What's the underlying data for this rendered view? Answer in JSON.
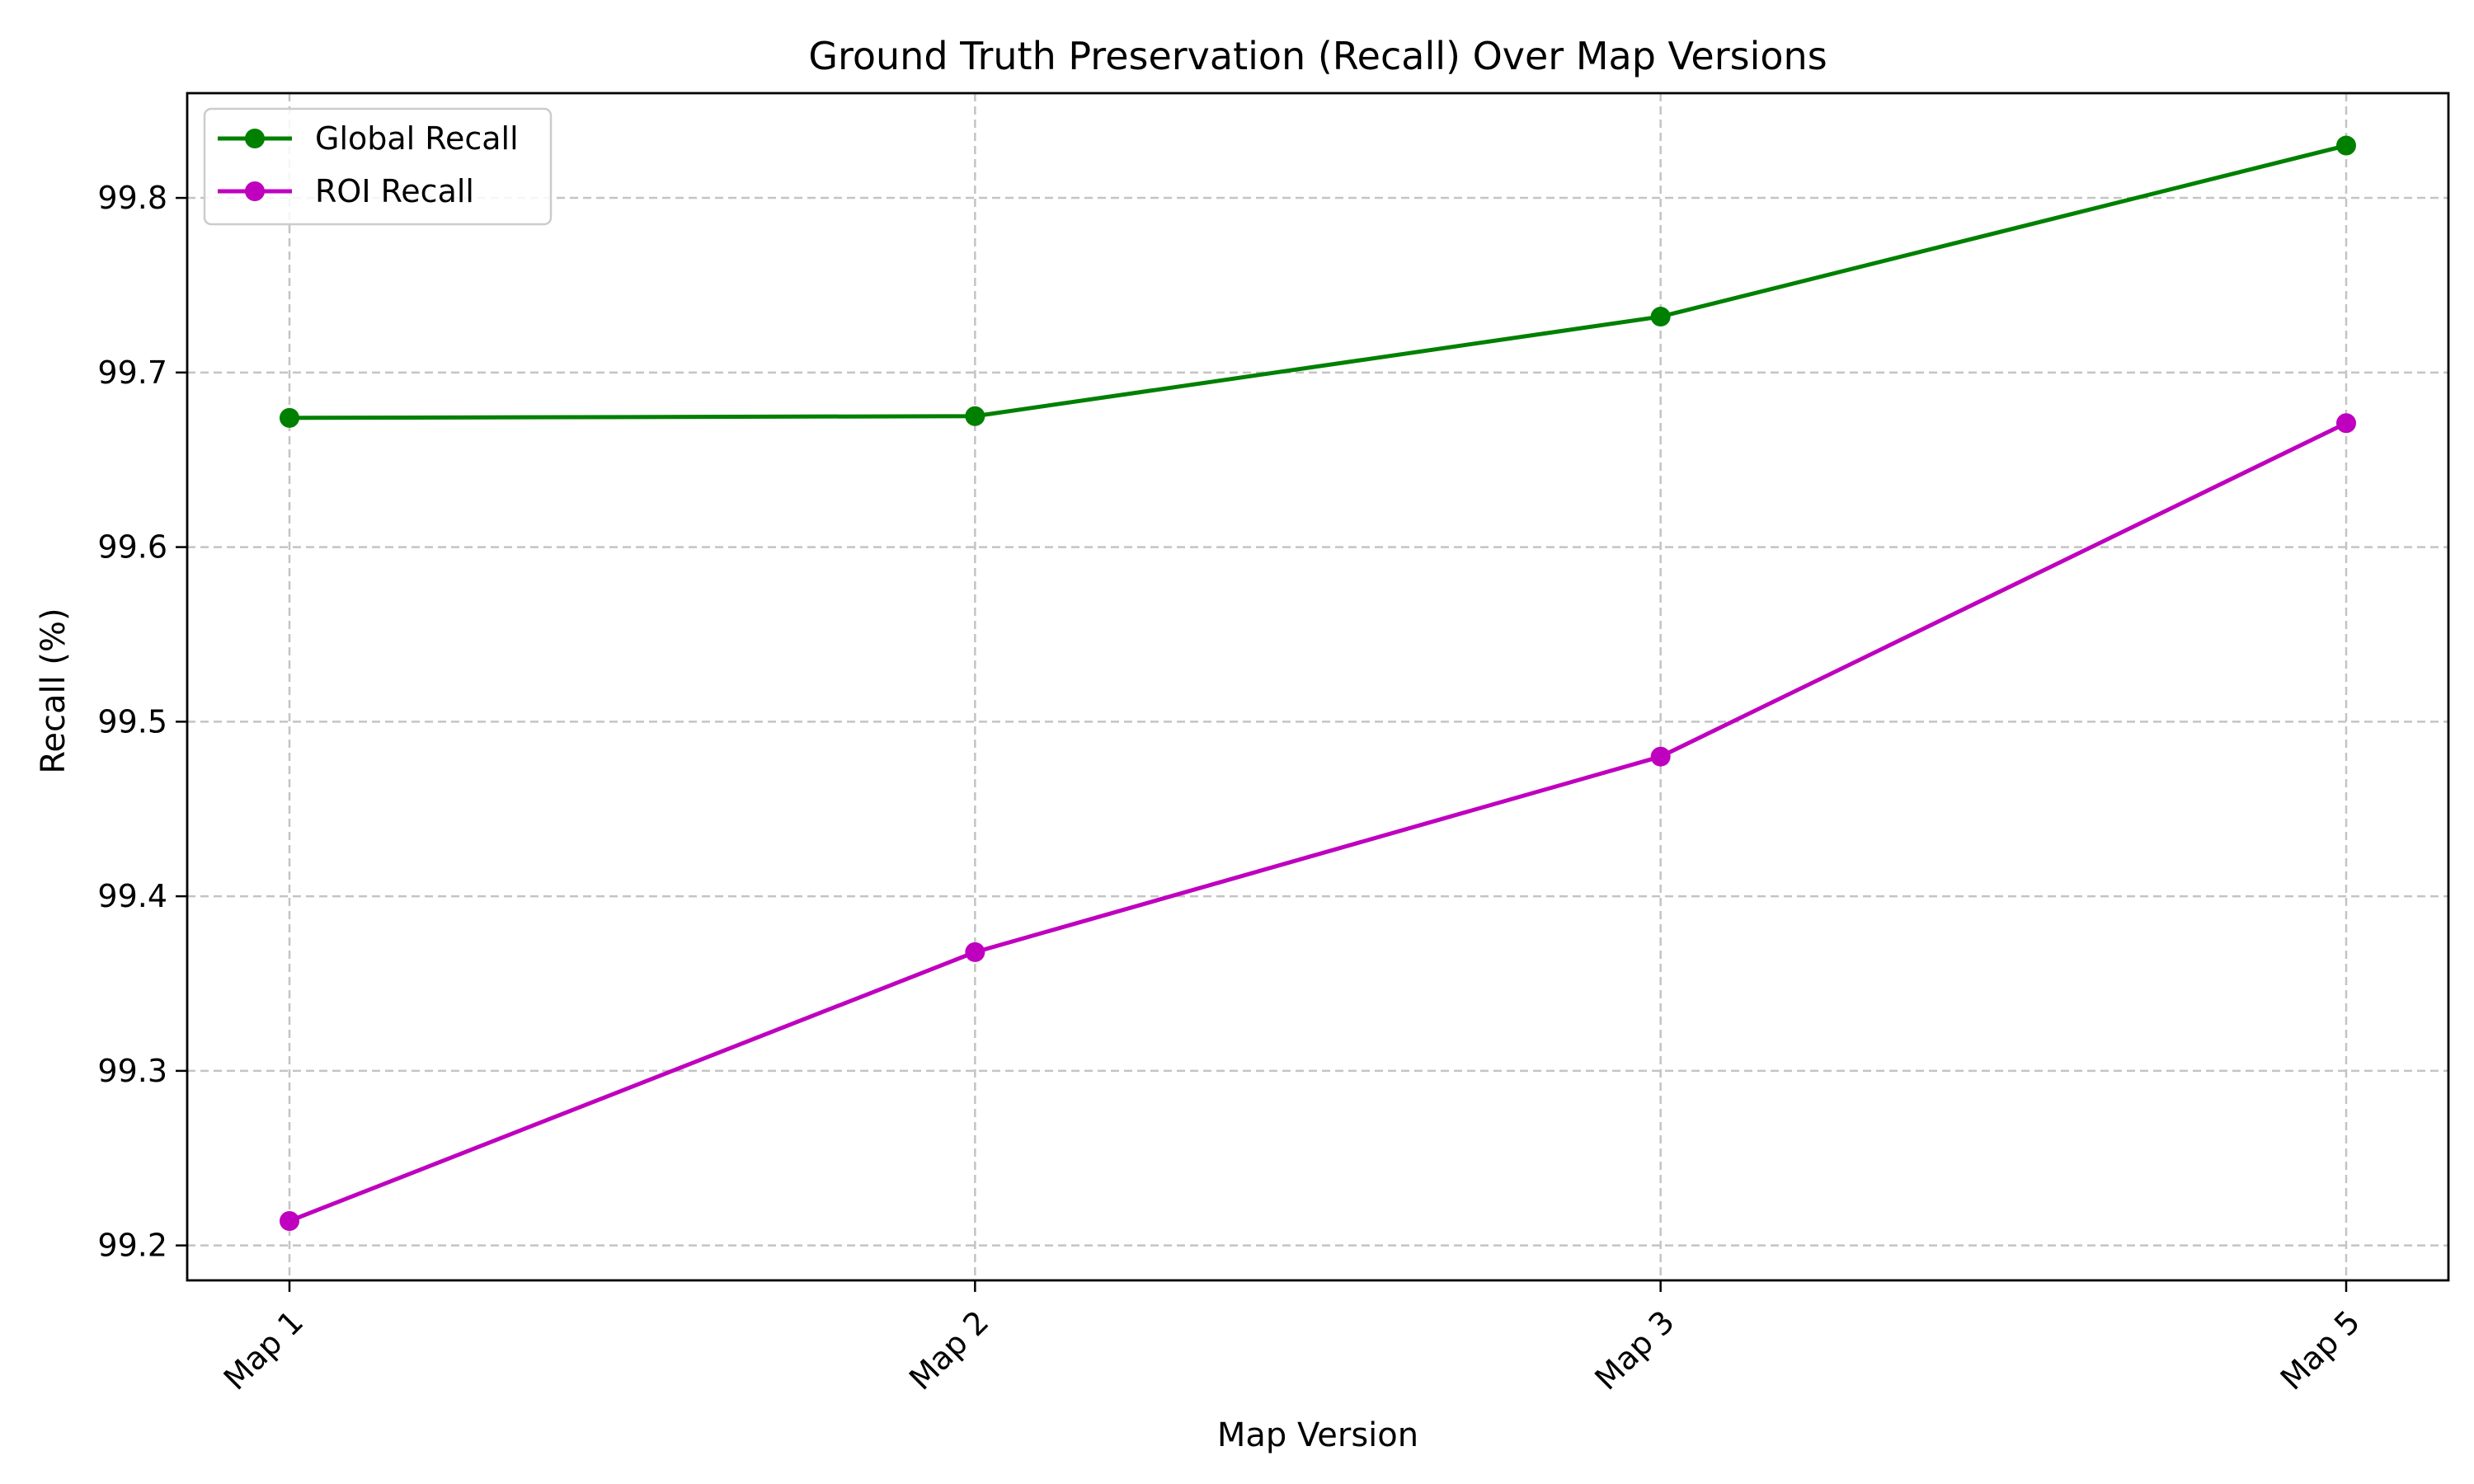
{
  "chart_data": {
    "type": "line",
    "title": "Ground Truth Preservation (Recall) Over Map Versions",
    "xlabel": "Map Version",
    "ylabel": "Recall (%)",
    "categories": [
      "Map 1",
      "Map 2",
      "Map 3",
      "Map 5"
    ],
    "ylim": [
      99.18,
      99.86
    ],
    "yticks": [
      "99.2",
      "99.3",
      "99.4",
      "99.5",
      "99.6",
      "99.7",
      "99.8"
    ],
    "grid": true,
    "legend": "top-left",
    "series": [
      {
        "name": "Global Recall",
        "color": "#008000",
        "marker": "circle",
        "values": [
          99.674,
          99.675,
          99.732,
          99.83
        ]
      },
      {
        "name": "ROI Recall",
        "color": "#bf00bf",
        "marker": "circle",
        "values": [
          99.214,
          99.368,
          99.48,
          99.671
        ]
      }
    ]
  }
}
